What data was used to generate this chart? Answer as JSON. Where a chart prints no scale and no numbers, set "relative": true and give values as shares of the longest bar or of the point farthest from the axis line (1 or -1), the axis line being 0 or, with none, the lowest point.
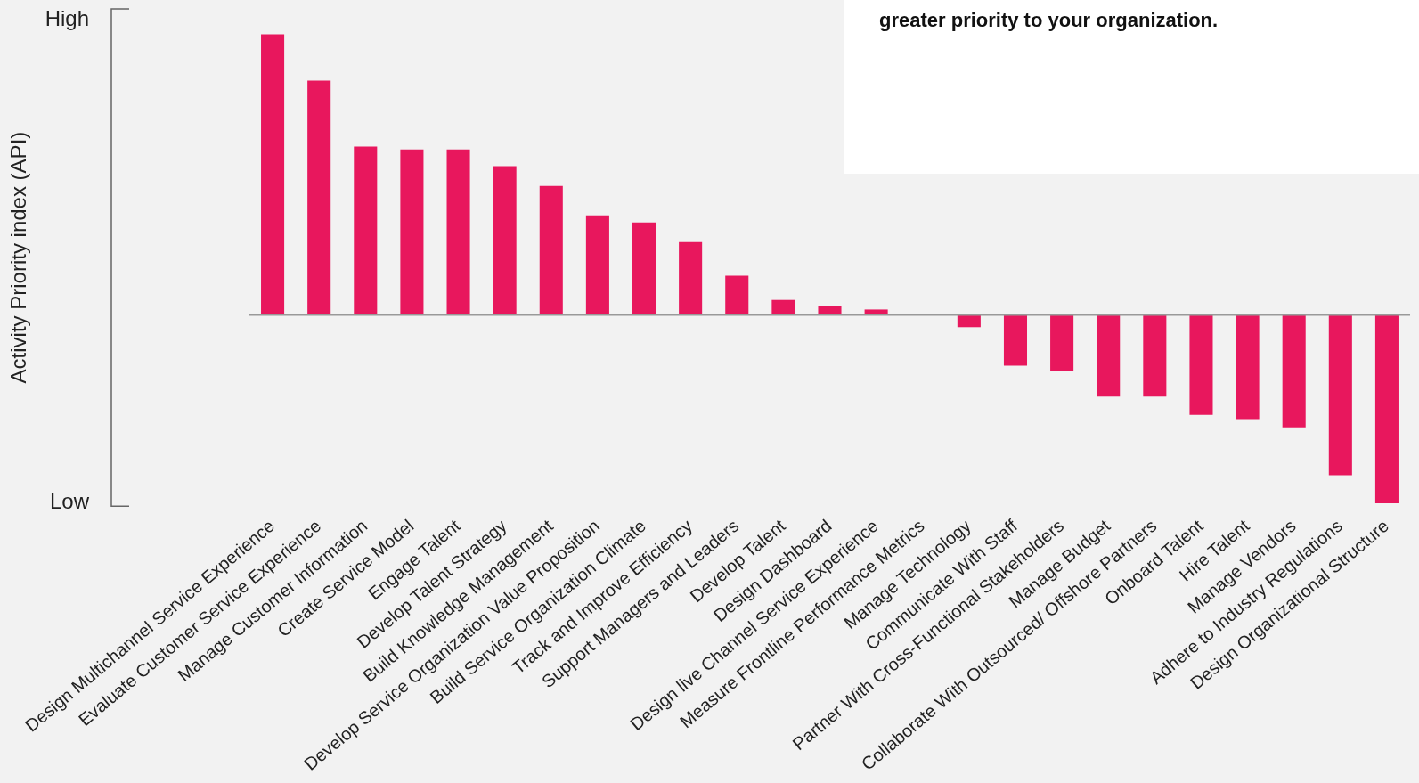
{
  "chart_data": {
    "type": "bar",
    "relative": true,
    "ylabel": "Activity Priority index (API)",
    "color": "#e8175d",
    "grid": false,
    "legend": false,
    "categories": [
      "Design Multichannel Service Experience",
      "Evaluate Customer Service Experience",
      "Manage Customer Information",
      "Create Service Model",
      "Engage Talent",
      "Develop Talent Strategy",
      "Build Knowledge Management",
      "Develop Service Organization Value Proposition",
      "Build Service Organization Climate",
      "Track and Improve Efficiency",
      "Support Managers and Leaders",
      "Develop Talent",
      "Design Dashboard",
      "Design live Channel Service Experience",
      "Measure Frontline Performance Metrics",
      "Manage Technology",
      "Communicate With Staff",
      "Partner With Cross-Functional Stakeholders",
      "Manage Budget",
      "Collaborate With Outsourced/ Offshore Partners",
      "Onboard Talent",
      "Hire Talent",
      "Manage Vendors",
      "Adhere to Industry Regulations",
      "Design Organizational Structure"
    ],
    "values": [
      1.0,
      0.835,
      0.6,
      0.59,
      0.59,
      0.53,
      0.46,
      0.355,
      0.33,
      0.26,
      0.14,
      0.054,
      0.032,
      0.02,
      0.0,
      -0.043,
      -0.18,
      -0.2,
      -0.29,
      -0.29,
      -0.355,
      -0.37,
      -0.4,
      -0.57,
      -0.67
    ],
    "annotations": [
      "High",
      "Low",
      "greater priority to your organization."
    ]
  }
}
